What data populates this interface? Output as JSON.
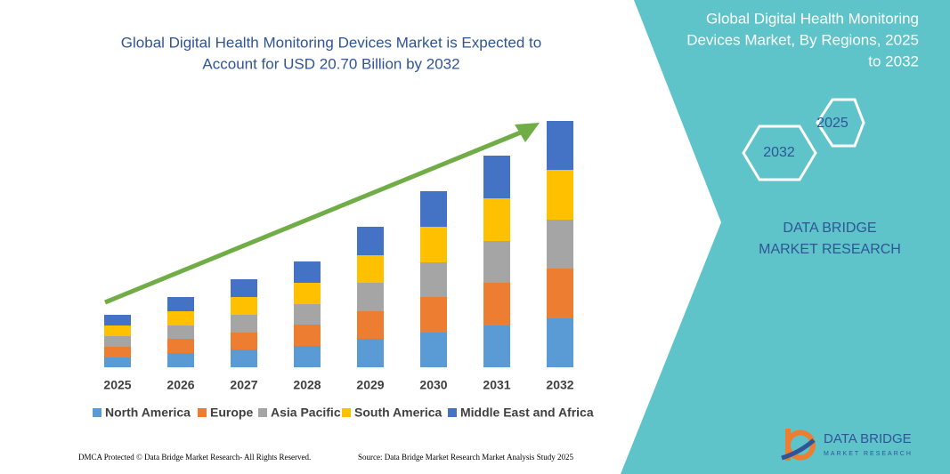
{
  "chart_data": {
    "type": "bar",
    "stacked": true,
    "title": "Global Digital Health Monitoring Devices Market is Expected to Account for USD 20.70 Billion by 2032",
    "categories": [
      "2025",
      "2026",
      "2027",
      "2028",
      "2029",
      "2030",
      "2031",
      "2032"
    ],
    "series": [
      {
        "name": "North America",
        "color": "#5b9bd5",
        "values": [
          11,
          16,
          20,
          24,
          32,
          39,
          47,
          55
        ]
      },
      {
        "name": "Europe",
        "color": "#ed7d31",
        "values": [
          12,
          16,
          19,
          24,
          31,
          40,
          48,
          56
        ]
      },
      {
        "name": "Asia Pacific",
        "color": "#a5a5a5",
        "values": [
          12,
          15,
          20,
          23,
          32,
          39,
          47,
          55
        ]
      },
      {
        "name": "South America",
        "color": "#ffc000",
        "values": [
          12,
          16,
          20,
          24,
          31,
          40,
          48,
          56
        ]
      },
      {
        "name": "Middle East and Africa",
        "color": "#4472c4",
        "values": [
          12,
          16,
          20,
          24,
          32,
          40,
          48,
          55
        ]
      }
    ]
  },
  "panel": {
    "title": "Global Digital Health Monitoring Devices Market, By Regions, 2025 to 2032",
    "hex_right": "2025",
    "hex_left": "2032",
    "brand": "DATA BRIDGE MARKET RESEARCH"
  },
  "footer": {
    "left": "DMCA Protected © Data Bridge Market Research- All Rights Reserved.",
    "right": "Source: Data Bridge Market Research Market Analysis Study 2025"
  },
  "logo": {
    "name": "DATA BRIDGE",
    "tagline": "MARKET RESEARCH"
  }
}
